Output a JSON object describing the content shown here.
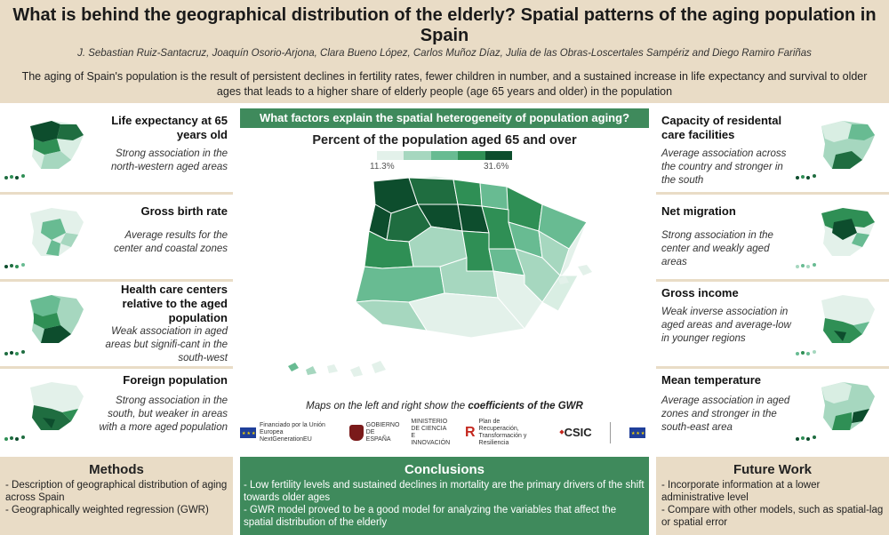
{
  "header": {
    "title": "What is behind the geographical distribution of the elderly? Spatial patterns of the aging population in Spain",
    "authors": "J. Sebastian Ruiz-Santacruz, Joaquín Osorio-Arjona, Clara Bueno López, Carlos Muñoz Díaz, Julia de las Obras-Loscertales Sampériz and Diego Ramiro Fariñas",
    "summary": "The aging of Spain's population is the result of persistent declines in fertility rates, fewer children in number, and a sustained increase in life expectancy and survival to older ages that leads to a higher share of elderly people (age 65 years and older) in the population"
  },
  "center": {
    "question": "What factors explain the spatial heterogeneity of population aging?",
    "map_title": "Percent of the population aged 65 and over",
    "legend_min": "11.3%",
    "legend_max": "31.6%",
    "legend_colors": [
      "#e3f1ea",
      "#a6d7bf",
      "#68bb92",
      "#2f8f55",
      "#0d4d2d"
    ],
    "caption_prefix": "Maps on the left and right show the ",
    "caption_bold": "coefficients of the GWR"
  },
  "left_factors": [
    {
      "title": "Life expectancy at 65 years old",
      "description": "Strong association in the north-western aged areas",
      "icon": "mini-map-icon"
    },
    {
      "title": "Gross birth rate",
      "description": "Average results for the center and coastal zones",
      "icon": "mini-map-icon"
    },
    {
      "title": "Health care centers relative to the aged population",
      "description": "Weak association in aged areas but signifi-cant in the south-west",
      "icon": "mini-map-icon"
    },
    {
      "title": "Foreign population",
      "description": "Strong association in the south, but weaker in areas with a more aged population",
      "icon": "mini-map-icon"
    }
  ],
  "right_factors": [
    {
      "title": "Capacity of residental care facilities",
      "description": "Average association across the country and stronger in the south",
      "icon": "mini-map-icon"
    },
    {
      "title": "Net migration",
      "description": "Strong association in the center and weakly aged areas",
      "icon": "mini-map-icon"
    },
    {
      "title": "Gross income",
      "description": "Weak inverse association in aged areas and average-low in younger regions",
      "icon": "mini-map-icon"
    },
    {
      "title": "Mean temperature",
      "description": "Average association in aged zones and stronger in the south-east area",
      "icon": "mini-map-icon"
    }
  ],
  "logos": {
    "eu_text": "Financiado por la Unión Europea NextGenerationEU",
    "gov_text": "GOBIERNO DE ESPAÑA",
    "ministry_text": "MINISTERIO DE CIENCIA E INNOVACIÓN",
    "plan_text": "Plan de Recuperación, Transformación y Resiliencia",
    "csic_text": "CSIC"
  },
  "methods": {
    "title": "Methods",
    "items": [
      "- Description of geographical distribution of aging across Spain",
      "- Geographically weighted regression (GWR)"
    ]
  },
  "conclusions": {
    "title": "Conclusions",
    "items": [
      "- Low fertility levels and sustained declines in mortality are the primary drivers of the shift towards older ages",
      "- GWR model proved to be a good model for analyzing the variables that affect the spatial distribution of the elderly"
    ]
  },
  "future_work": {
    "title": "Future Work",
    "items": [
      "- Incorporate information at a lower administrative level",
      "- Compare with other models, such as spatial-lag or spatial error"
    ]
  }
}
